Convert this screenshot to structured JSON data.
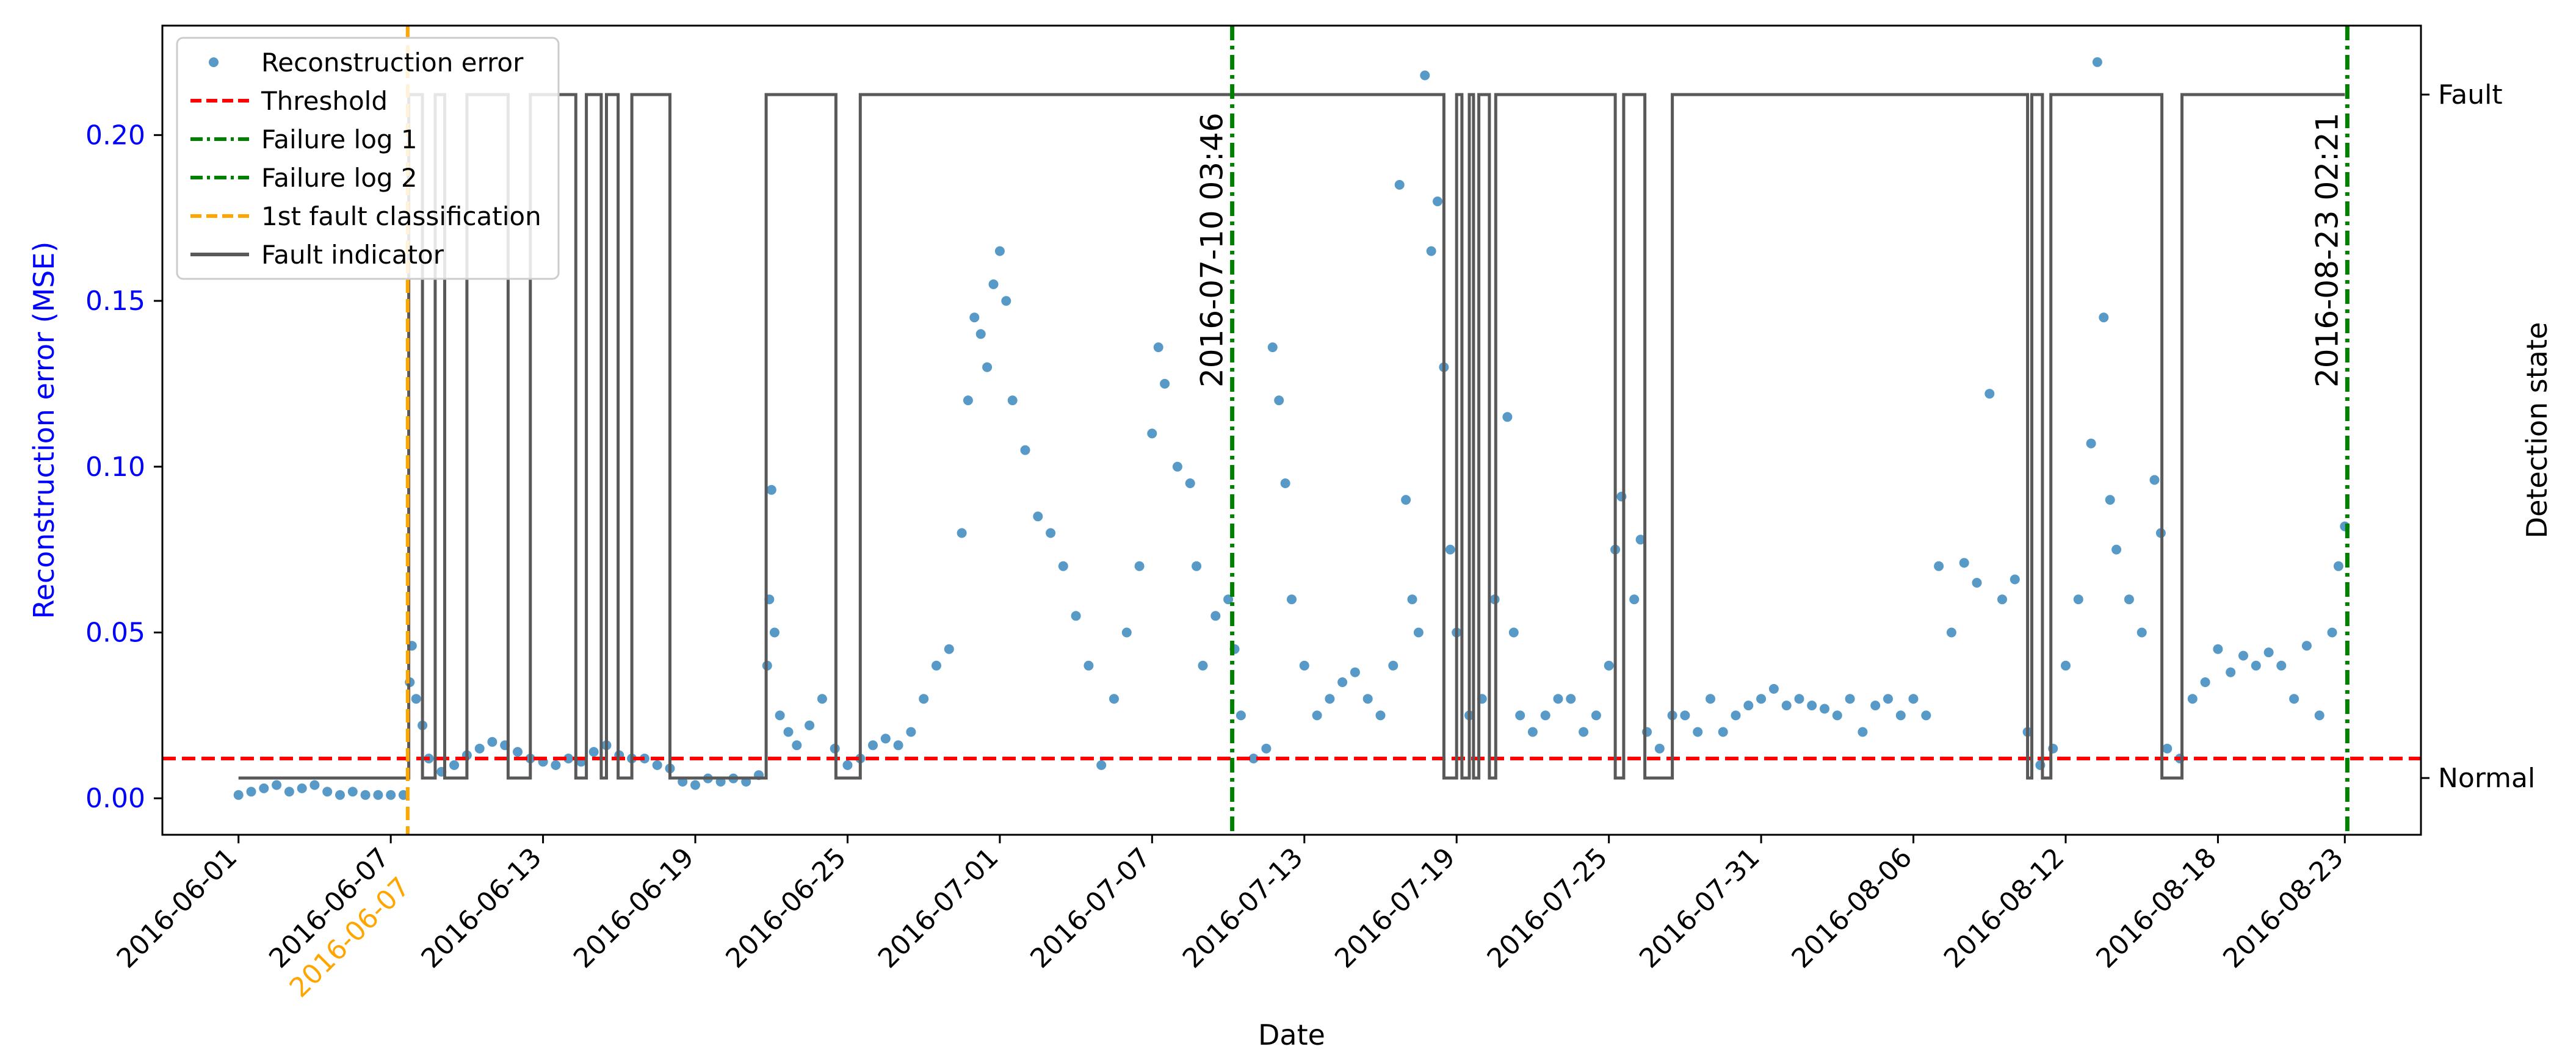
{
  "chart_data": {
    "type": "scatter",
    "title": "",
    "xlabel": "Date",
    "ylabel": "Reconstruction error (MSE)",
    "y2label": "Detection state",
    "xlim": [
      "2016-05-29T00:00",
      "2016-08-26T00:00"
    ],
    "ylim": [
      -0.011,
      0.233
    ],
    "x_ticks": [
      "2016-06-01",
      "2016-06-07",
      "2016-06-13",
      "2016-06-19",
      "2016-06-25",
      "2016-07-01",
      "2016-07-07",
      "2016-07-13",
      "2016-07-19",
      "2016-07-25",
      "2016-07-31",
      "2016-08-06",
      "2016-08-12",
      "2016-08-18",
      "2016-08-23"
    ],
    "y_ticks": [
      "0.00",
      "0.05",
      "0.10",
      "0.15",
      "0.20"
    ],
    "y2_ticks": [
      "Normal",
      "Fault"
    ],
    "grid": false,
    "legend_position": "top-left",
    "colors": {
      "scatter": "#1f77b4",
      "threshold": "#ff0000",
      "failure_log": "#008000",
      "first_fault": "#ffa500",
      "fault_indicator": "#595959",
      "ylabel": "#0000ff"
    },
    "legend": [
      {
        "label": "Reconstruction error",
        "kind": "marker",
        "color": "#1f77b4"
      },
      {
        "label": "Threshold",
        "kind": "dashed",
        "color": "#ff0000"
      },
      {
        "label": "Failure log 1",
        "kind": "dashdot",
        "color": "#008000"
      },
      {
        "label": "Failure log 2",
        "kind": "dashdot",
        "color": "#008000"
      },
      {
        "label": "1st fault classification",
        "kind": "dashed",
        "color": "#ffa500"
      },
      {
        "label": "Fault indicator",
        "kind": "solid",
        "color": "#595959"
      }
    ],
    "threshold": 0.012,
    "failure_logs": [
      {
        "label": "Failure log 1",
        "x": "2016-07-10T03:46",
        "annotation": "2016-07-10 03:46"
      },
      {
        "label": "Failure log 2",
        "x": "2016-08-23T02:21",
        "annotation": "2016-08-23 02:21"
      }
    ],
    "first_fault_classification": {
      "x": "2016-06-07T16:00",
      "annotation": "2016-06-07"
    },
    "fault_indicator_start": {
      "x": "2016-06-01",
      "state": 0
    },
    "fault_indicator_steps": [
      [
        "2016-06-07T17:00",
        1
      ],
      [
        "2016-06-08T06:00",
        0
      ],
      [
        "2016-06-08T18:00",
        1
      ],
      [
        "2016-06-09T03:00",
        0
      ],
      [
        "2016-06-10T00:00",
        1
      ],
      [
        "2016-06-11T15:00",
        0
      ],
      [
        "2016-06-12T12:00",
        1
      ],
      [
        "2016-06-14T07:00",
        0
      ],
      [
        "2016-06-14T17:00",
        1
      ],
      [
        "2016-06-15T07:00",
        0
      ],
      [
        "2016-06-15T12:00",
        1
      ],
      [
        "2016-06-15T23:00",
        0
      ],
      [
        "2016-06-16T12:00",
        1
      ],
      [
        "2016-06-18T00:00",
        0
      ],
      [
        "2016-06-21T19:00",
        1
      ],
      [
        "2016-06-24T13:00",
        0
      ],
      [
        "2016-06-25T12:00",
        1
      ],
      [
        "2016-07-18T12:00",
        0
      ],
      [
        "2016-07-19T00:00",
        1
      ],
      [
        "2016-07-19T05:00",
        0
      ],
      [
        "2016-07-19T12:00",
        1
      ],
      [
        "2016-07-19T16:00",
        0
      ],
      [
        "2016-07-19T21:00",
        1
      ],
      [
        "2016-07-20T07:00",
        0
      ],
      [
        "2016-07-20T13:00",
        1
      ],
      [
        "2016-07-25T06:00",
        0
      ],
      [
        "2016-07-25T14:00",
        1
      ],
      [
        "2016-07-26T10:00",
        0
      ],
      [
        "2016-07-27T12:00",
        1
      ],
      [
        "2016-08-10T12:00",
        0
      ],
      [
        "2016-08-10T16:00",
        1
      ],
      [
        "2016-08-11T02:00",
        0
      ],
      [
        "2016-08-11T10:00",
        1
      ],
      [
        "2016-08-15T19:00",
        0
      ],
      [
        "2016-08-16T14:00",
        1
      ],
      [
        "2016-08-23T00:00",
        1
      ]
    ],
    "series": [
      {
        "name": "Reconstruction error",
        "points": [
          [
            "2016-06-01T00:00",
            0.001
          ],
          [
            "2016-06-01T12:00",
            0.002
          ],
          [
            "2016-06-02T00:00",
            0.003
          ],
          [
            "2016-06-02T12:00",
            0.004
          ],
          [
            "2016-06-03T00:00",
            0.002
          ],
          [
            "2016-06-03T12:00",
            0.003
          ],
          [
            "2016-06-04T00:00",
            0.004
          ],
          [
            "2016-06-04T12:00",
            0.002
          ],
          [
            "2016-06-05T00:00",
            0.001
          ],
          [
            "2016-06-05T12:00",
            0.002
          ],
          [
            "2016-06-06T00:00",
            0.001
          ],
          [
            "2016-06-06T12:00",
            0.001
          ],
          [
            "2016-06-07T00:00",
            0.001
          ],
          [
            "2016-06-07T12:00",
            0.001
          ],
          [
            "2016-06-07T18:00",
            0.035
          ],
          [
            "2016-06-07T20:00",
            0.046
          ],
          [
            "2016-06-08T00:00",
            0.03
          ],
          [
            "2016-06-08T06:00",
            0.022
          ],
          [
            "2016-06-08T12:00",
            0.012
          ],
          [
            "2016-06-09T00:00",
            0.008
          ],
          [
            "2016-06-09T12:00",
            0.01
          ],
          [
            "2016-06-10T00:00",
            0.013
          ],
          [
            "2016-06-10T12:00",
            0.015
          ],
          [
            "2016-06-11T00:00",
            0.017
          ],
          [
            "2016-06-11T12:00",
            0.016
          ],
          [
            "2016-06-12T00:00",
            0.014
          ],
          [
            "2016-06-12T12:00",
            0.012
          ],
          [
            "2016-06-13T00:00",
            0.011
          ],
          [
            "2016-06-13T12:00",
            0.01
          ],
          [
            "2016-06-14T00:00",
            0.012
          ],
          [
            "2016-06-14T12:00",
            0.011
          ],
          [
            "2016-06-15T00:00",
            0.014
          ],
          [
            "2016-06-15T12:00",
            0.016
          ],
          [
            "2016-06-16T00:00",
            0.013
          ],
          [
            "2016-06-16T12:00",
            0.012
          ],
          [
            "2016-06-17T00:00",
            0.012
          ],
          [
            "2016-06-17T12:00",
            0.01
          ],
          [
            "2016-06-18T00:00",
            0.009
          ],
          [
            "2016-06-18T12:00",
            0.005
          ],
          [
            "2016-06-19T00:00",
            0.004
          ],
          [
            "2016-06-19T12:00",
            0.006
          ],
          [
            "2016-06-20T00:00",
            0.005
          ],
          [
            "2016-06-20T12:00",
            0.006
          ],
          [
            "2016-06-21T00:00",
            0.005
          ],
          [
            "2016-06-21T12:00",
            0.007
          ],
          [
            "2016-06-21T20:00",
            0.04
          ],
          [
            "2016-06-21T22:00",
            0.06
          ],
          [
            "2016-06-22T00:00",
            0.093
          ],
          [
            "2016-06-22T03:00",
            0.05
          ],
          [
            "2016-06-22T08:00",
            0.025
          ],
          [
            "2016-06-22T16:00",
            0.02
          ],
          [
            "2016-06-23T00:00",
            0.016
          ],
          [
            "2016-06-23T12:00",
            0.022
          ],
          [
            "2016-06-24T00:00",
            0.03
          ],
          [
            "2016-06-24T12:00",
            0.015
          ],
          [
            "2016-06-25T00:00",
            0.01
          ],
          [
            "2016-06-25T12:00",
            0.012
          ],
          [
            "2016-06-26T00:00",
            0.016
          ],
          [
            "2016-06-26T12:00",
            0.018
          ],
          [
            "2016-06-27T00:00",
            0.016
          ],
          [
            "2016-06-27T12:00",
            0.02
          ],
          [
            "2016-06-28T00:00",
            0.03
          ],
          [
            "2016-06-28T12:00",
            0.04
          ],
          [
            "2016-06-29T00:00",
            0.045
          ],
          [
            "2016-06-29T12:00",
            0.08
          ],
          [
            "2016-06-29T18:00",
            0.12
          ],
          [
            "2016-06-30T00:00",
            0.145
          ],
          [
            "2016-06-30T06:00",
            0.14
          ],
          [
            "2016-06-30T12:00",
            0.13
          ],
          [
            "2016-06-30T18:00",
            0.155
          ],
          [
            "2016-07-01T00:00",
            0.165
          ],
          [
            "2016-07-01T06:00",
            0.15
          ],
          [
            "2016-07-01T12:00",
            0.12
          ],
          [
            "2016-07-02T00:00",
            0.105
          ],
          [
            "2016-07-02T12:00",
            0.085
          ],
          [
            "2016-07-03T00:00",
            0.08
          ],
          [
            "2016-07-03T12:00",
            0.07
          ],
          [
            "2016-07-04T00:00",
            0.055
          ],
          [
            "2016-07-04T12:00",
            0.04
          ],
          [
            "2016-07-05T00:00",
            0.01
          ],
          [
            "2016-07-05T12:00",
            0.03
          ],
          [
            "2016-07-06T00:00",
            0.05
          ],
          [
            "2016-07-06T12:00",
            0.07
          ],
          [
            "2016-07-07T00:00",
            0.11
          ],
          [
            "2016-07-07T06:00",
            0.136
          ],
          [
            "2016-07-07T12:00",
            0.125
          ],
          [
            "2016-07-08T00:00",
            0.1
          ],
          [
            "2016-07-08T12:00",
            0.095
          ],
          [
            "2016-07-08T18:00",
            0.07
          ],
          [
            "2016-07-09T00:00",
            0.04
          ],
          [
            "2016-07-09T12:00",
            0.055
          ],
          [
            "2016-07-10T00:00",
            0.06
          ],
          [
            "2016-07-10T06:00",
            0.045
          ],
          [
            "2016-07-10T12:00",
            0.025
          ],
          [
            "2016-07-11T00:00",
            0.012
          ],
          [
            "2016-07-11T12:00",
            0.015
          ],
          [
            "2016-07-11T18:00",
            0.136
          ],
          [
            "2016-07-12T00:00",
            0.12
          ],
          [
            "2016-07-12T06:00",
            0.095
          ],
          [
            "2016-07-12T12:00",
            0.06
          ],
          [
            "2016-07-13T00:00",
            0.04
          ],
          [
            "2016-07-13T12:00",
            0.025
          ],
          [
            "2016-07-14T00:00",
            0.03
          ],
          [
            "2016-07-14T12:00",
            0.035
          ],
          [
            "2016-07-15T00:00",
            0.038
          ],
          [
            "2016-07-15T12:00",
            0.03
          ],
          [
            "2016-07-16T00:00",
            0.025
          ],
          [
            "2016-07-16T12:00",
            0.04
          ],
          [
            "2016-07-16T18:00",
            0.185
          ],
          [
            "2016-07-17T00:00",
            0.09
          ],
          [
            "2016-07-17T06:00",
            0.06
          ],
          [
            "2016-07-17T12:00",
            0.05
          ],
          [
            "2016-07-17T18:00",
            0.218
          ],
          [
            "2016-07-18T00:00",
            0.165
          ],
          [
            "2016-07-18T06:00",
            0.18
          ],
          [
            "2016-07-18T12:00",
            0.13
          ],
          [
            "2016-07-18T18:00",
            0.075
          ],
          [
            "2016-07-19T00:00",
            0.05
          ],
          [
            "2016-07-19T12:00",
            0.025
          ],
          [
            "2016-07-20T00:00",
            0.03
          ],
          [
            "2016-07-20T12:00",
            0.06
          ],
          [
            "2016-07-21T00:00",
            0.115
          ],
          [
            "2016-07-21T06:00",
            0.05
          ],
          [
            "2016-07-21T12:00",
            0.025
          ],
          [
            "2016-07-22T00:00",
            0.02
          ],
          [
            "2016-07-22T12:00",
            0.025
          ],
          [
            "2016-07-23T00:00",
            0.03
          ],
          [
            "2016-07-23T12:00",
            0.03
          ],
          [
            "2016-07-24T00:00",
            0.02
          ],
          [
            "2016-07-24T12:00",
            0.025
          ],
          [
            "2016-07-25T00:00",
            0.04
          ],
          [
            "2016-07-25T06:00",
            0.075
          ],
          [
            "2016-07-25T12:00",
            0.091
          ],
          [
            "2016-07-26T00:00",
            0.06
          ],
          [
            "2016-07-26T06:00",
            0.078
          ],
          [
            "2016-07-26T12:00",
            0.02
          ],
          [
            "2016-07-27T00:00",
            0.015
          ],
          [
            "2016-07-27T12:00",
            0.025
          ],
          [
            "2016-07-28T00:00",
            0.025
          ],
          [
            "2016-07-28T12:00",
            0.02
          ],
          [
            "2016-07-29T00:00",
            0.03
          ],
          [
            "2016-07-29T12:00",
            0.02
          ],
          [
            "2016-07-30T00:00",
            0.025
          ],
          [
            "2016-07-30T12:00",
            0.028
          ],
          [
            "2016-07-31T00:00",
            0.03
          ],
          [
            "2016-07-31T12:00",
            0.033
          ],
          [
            "2016-08-01T00:00",
            0.028
          ],
          [
            "2016-08-01T12:00",
            0.03
          ],
          [
            "2016-08-02T00:00",
            0.028
          ],
          [
            "2016-08-02T12:00",
            0.027
          ],
          [
            "2016-08-03T00:00",
            0.025
          ],
          [
            "2016-08-03T12:00",
            0.03
          ],
          [
            "2016-08-04T00:00",
            0.02
          ],
          [
            "2016-08-04T12:00",
            0.028
          ],
          [
            "2016-08-05T00:00",
            0.03
          ],
          [
            "2016-08-05T12:00",
            0.025
          ],
          [
            "2016-08-06T00:00",
            0.03
          ],
          [
            "2016-08-06T12:00",
            0.025
          ],
          [
            "2016-08-07T00:00",
            0.07
          ],
          [
            "2016-08-07T12:00",
            0.05
          ],
          [
            "2016-08-08T00:00",
            0.071
          ],
          [
            "2016-08-08T12:00",
            0.065
          ],
          [
            "2016-08-09T00:00",
            0.122
          ],
          [
            "2016-08-09T12:00",
            0.06
          ],
          [
            "2016-08-10T00:00",
            0.066
          ],
          [
            "2016-08-10T12:00",
            0.02
          ],
          [
            "2016-08-11T00:00",
            0.01
          ],
          [
            "2016-08-11T12:00",
            0.015
          ],
          [
            "2016-08-12T00:00",
            0.04
          ],
          [
            "2016-08-12T12:00",
            0.06
          ],
          [
            "2016-08-13T00:00",
            0.107
          ],
          [
            "2016-08-13T06:00",
            0.222
          ],
          [
            "2016-08-13T12:00",
            0.145
          ],
          [
            "2016-08-13T18:00",
            0.09
          ],
          [
            "2016-08-14T00:00",
            0.075
          ],
          [
            "2016-08-14T12:00",
            0.06
          ],
          [
            "2016-08-15T00:00",
            0.05
          ],
          [
            "2016-08-15T12:00",
            0.096
          ],
          [
            "2016-08-15T18:00",
            0.08
          ],
          [
            "2016-08-16T00:00",
            0.015
          ],
          [
            "2016-08-16T12:00",
            0.012
          ],
          [
            "2016-08-17T00:00",
            0.03
          ],
          [
            "2016-08-17T12:00",
            0.035
          ],
          [
            "2016-08-18T00:00",
            0.045
          ],
          [
            "2016-08-18T12:00",
            0.038
          ],
          [
            "2016-08-19T00:00",
            0.043
          ],
          [
            "2016-08-19T12:00",
            0.04
          ],
          [
            "2016-08-20T00:00",
            0.044
          ],
          [
            "2016-08-20T12:00",
            0.04
          ],
          [
            "2016-08-21T00:00",
            0.03
          ],
          [
            "2016-08-21T12:00",
            0.046
          ],
          [
            "2016-08-22T00:00",
            0.025
          ],
          [
            "2016-08-22T12:00",
            0.05
          ],
          [
            "2016-08-22T18:00",
            0.07
          ],
          [
            "2016-08-23T00:00",
            0.082
          ]
        ]
      }
    ]
  }
}
